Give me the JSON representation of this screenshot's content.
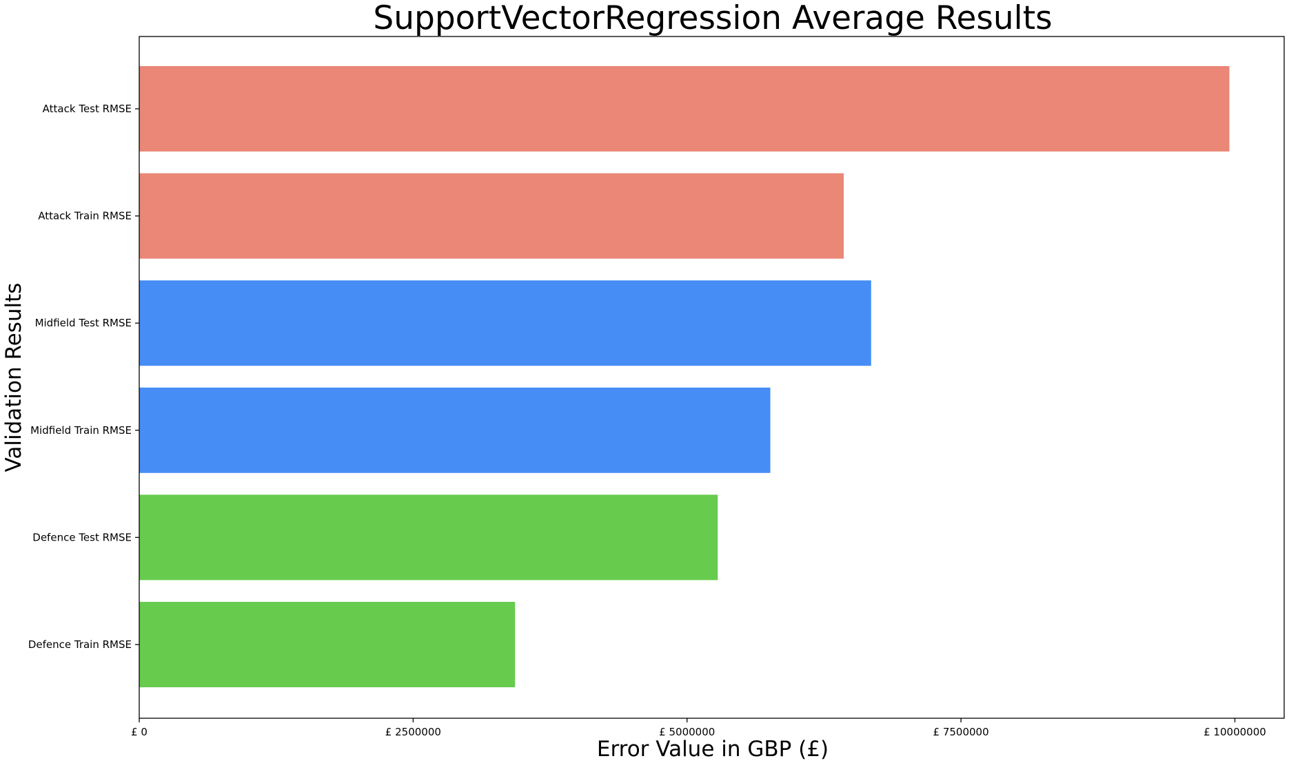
{
  "chart_data": {
    "type": "bar",
    "orientation": "horizontal",
    "title": "SupportVectorRegression Average Results",
    "xlabel": "Error Value in GBP (£)",
    "ylabel": "Validation Results",
    "categories": [
      "Attack Test RMSE",
      "Attack Train RMSE",
      "Midfield Test RMSE",
      "Midfield Train RMSE",
      "Defence Test RMSE",
      "Defence Train RMSE"
    ],
    "values": [
      9950000,
      6430000,
      6680000,
      5760000,
      5280000,
      3430000
    ],
    "colors": [
      "#ea8777",
      "#ea8777",
      "#468df6",
      "#468df6",
      "#67cb4e",
      "#67cb4e"
    ],
    "xlim": [
      0,
      10450000
    ],
    "xticks": [
      0,
      2500000,
      5000000,
      7500000,
      10000000
    ],
    "xtick_labels": [
      "£ 0",
      "£ 2500000",
      "£ 5000000",
      "£ 7500000",
      "£ 10000000"
    ],
    "grid": false,
    "legend": "none"
  }
}
